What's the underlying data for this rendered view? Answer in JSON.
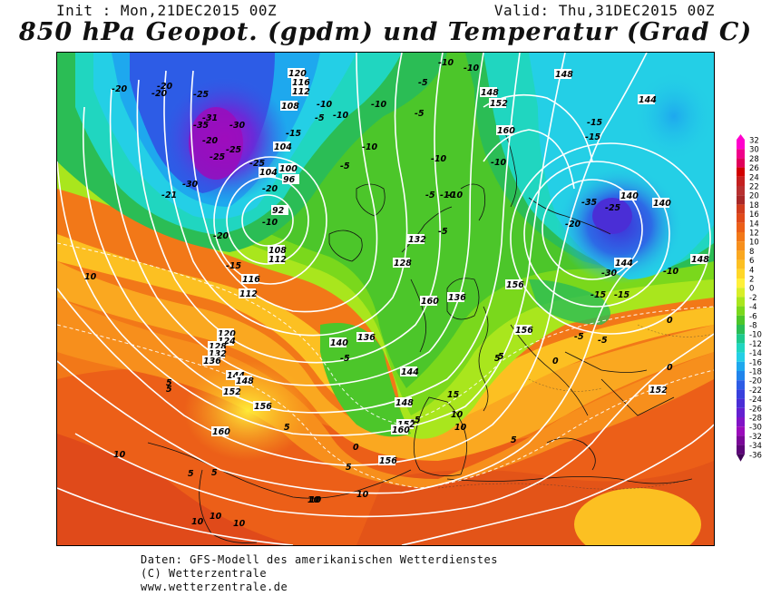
{
  "header": {
    "init": "Init : Mon,21DEC2015 00Z",
    "valid": "Valid: Thu,31DEC2015 00Z",
    "title": "850 hPa Geopot. (gpdm) und Temperatur (Grad C)"
  },
  "legend": {
    "values": [
      32,
      30,
      28,
      26,
      24,
      22,
      20,
      18,
      16,
      14,
      12,
      10,
      8,
      6,
      4,
      2,
      0,
      -2,
      -4,
      -6,
      -8,
      -10,
      -12,
      -14,
      -16,
      -18,
      -20,
      -22,
      -24,
      -26,
      -28,
      -30,
      -32,
      -34,
      -36
    ],
    "colors": {
      "32": "#ff00cc",
      "30": "#f0008a",
      "28": "#e0005a",
      "26": "#d10000",
      "24": "#c42020",
      "22": "#b83030",
      "20": "#a82828",
      "18": "#d03c1e",
      "16": "#e04a1a",
      "14": "#ec5f18",
      "12": "#f27818",
      "10": "#f78f1c",
      "8": "#faa820",
      "6": "#fcc022",
      "4": "#ffd728",
      "2": "#fff03a",
      "0": "#d8ee28",
      "-2": "#a9e61d",
      "-4": "#7ad81c",
      "-6": "#4cc62a",
      "-8": "#2bbd55",
      "-10": "#1ec98c",
      "-12": "#20d6c0",
      "-14": "#24cfe6",
      "-16": "#1ea8ee",
      "-18": "#2084ec",
      "-20": "#2d5ce6",
      "-22": "#3840dd",
      "-24": "#4a2ed6",
      "-26": "#6420d0",
      "-28": "#8114c6",
      "-30": "#9b0cbb",
      "-32": "#7a0898",
      "-34": "#5c0678",
      "-36": "#3f0456"
    }
  },
  "map": {
    "region": "Europe / North Atlantic",
    "geopotential_labels": [
      "120",
      "116",
      "112",
      "108",
      "104",
      "100",
      "96",
      "92",
      "104",
      "108",
      "112",
      "116",
      "112",
      "120",
      "124",
      "128",
      "132",
      "136",
      "144",
      "148",
      "152",
      "156",
      "160",
      "128",
      "132",
      "136",
      "140",
      "144",
      "148",
      "152",
      "156",
      "160",
      "148",
      "152",
      "156",
      "160",
      "140",
      "144",
      "148",
      "140",
      "144",
      "148",
      "136",
      "152",
      "156",
      "160"
    ],
    "temperature_labels": [
      "-20",
      "-20",
      "-25",
      "-20",
      "-31",
      "-35",
      "-30",
      "-25",
      "-20",
      "-25",
      "-21",
      "-30",
      "-20",
      "-25",
      "-15",
      "-10",
      "-10",
      "-5",
      "-10",
      "-15",
      "-20",
      "-10",
      "-5",
      "-10",
      "-5",
      "-5",
      "-10",
      "-10",
      "-5",
      "-10",
      "-15",
      "-25",
      "-35",
      "-20",
      "-15",
      "-10",
      "-5",
      "-30",
      "-15",
      "-10",
      "-5",
      "0",
      "5",
      "10",
      "15",
      "10",
      "10",
      "5",
      "0",
      "5",
      "10",
      "10",
      "10",
      "5",
      "10",
      "5",
      "0",
      "5",
      "-5",
      "-5",
      "0",
      "5",
      "10",
      "10",
      "10",
      "5",
      "5",
      "-5",
      "-10",
      "-15",
      "-10"
    ]
  },
  "footer": {
    "line1": "Daten: GFS-Modell des amerikanischen Wetterdienstes",
    "line2": "(C) Wetterzentrale",
    "line3": "www.wetterzentrale.de"
  }
}
